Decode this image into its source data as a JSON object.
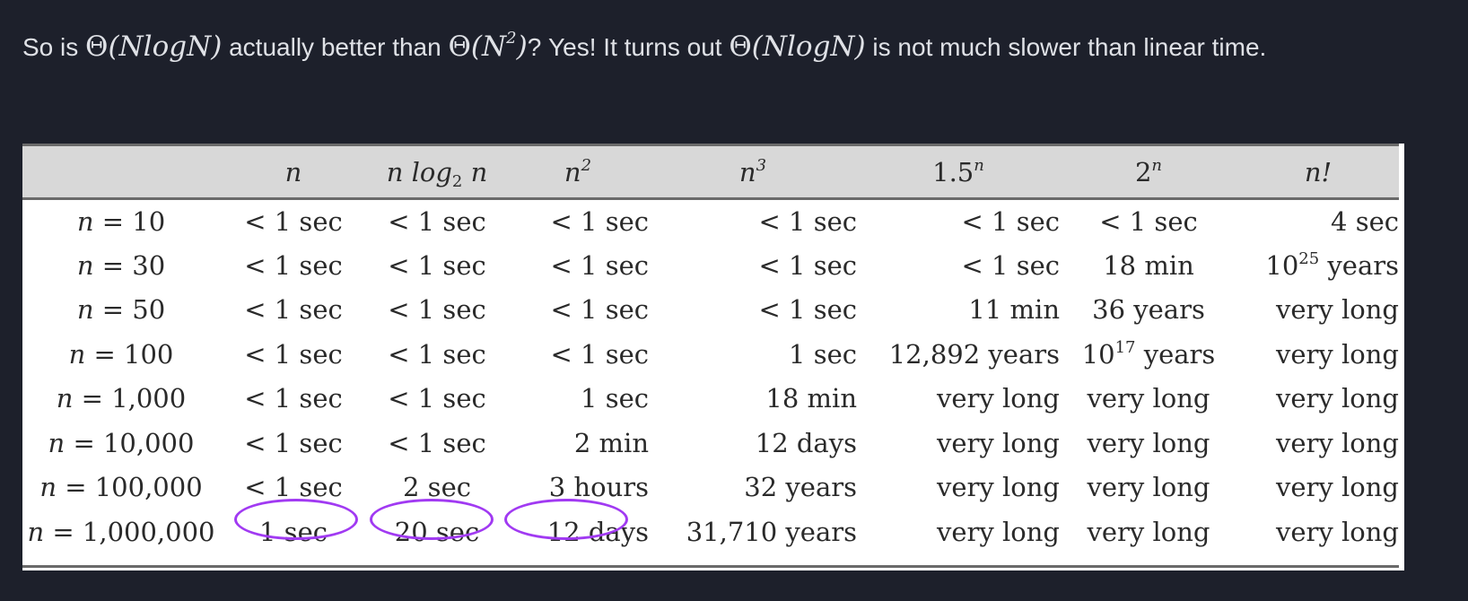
{
  "intro": {
    "part1": "So is ",
    "math1_theta": "Θ",
    "math1_body": "(NlogN)",
    "part2": " actually better than ",
    "math2_theta": "Θ",
    "math2_open": "(N",
    "math2_sup": "2",
    "math2_close": ")",
    "part3": "? Yes! It turns out ",
    "math3_theta": "Θ",
    "math3_body": "(NlogN)",
    "part4": " is not much slower than linear time."
  },
  "table": {
    "headers": [
      {
        "base": "",
        "sub": "",
        "sup": "",
        "tail": ""
      },
      {
        "base": "n",
        "sub": "",
        "sup": "",
        "tail": ""
      },
      {
        "base": "n log",
        "sub": "2",
        "sup": "",
        "tail": " n"
      },
      {
        "base": "n",
        "sub": "",
        "sup": "2",
        "tail": ""
      },
      {
        "base": "n",
        "sub": "",
        "sup": "3",
        "tail": ""
      },
      {
        "base": "1.5",
        "sub": "",
        "sup": "n",
        "tail": ""
      },
      {
        "base": "2",
        "sub": "",
        "sup": "n",
        "tail": ""
      },
      {
        "base": "n!",
        "sub": "",
        "sup": "",
        "tail": ""
      }
    ],
    "rows": [
      {
        "label": "n = 10",
        "cells": [
          "< 1 sec",
          "< 1 sec",
          "< 1 sec",
          "< 1 sec",
          "< 1 sec",
          "< 1 sec",
          "4 sec"
        ]
      },
      {
        "label": "n = 30",
        "cells": [
          "< 1 sec",
          "< 1 sec",
          "< 1 sec",
          "< 1 sec",
          "< 1 sec",
          "18 min",
          "10^25 years"
        ]
      },
      {
        "label": "n = 50",
        "cells": [
          "< 1 sec",
          "< 1 sec",
          "< 1 sec",
          "< 1 sec",
          "11 min",
          "36 years",
          "very long"
        ]
      },
      {
        "label": "n = 100",
        "cells": [
          "< 1 sec",
          "< 1 sec",
          "< 1 sec",
          "1 sec",
          "12,892 years",
          "10^17 years",
          "very long"
        ]
      },
      {
        "label": "n = 1,000",
        "cells": [
          "< 1 sec",
          "< 1 sec",
          "1 sec",
          "18 min",
          "very long",
          "very long",
          "very long"
        ]
      },
      {
        "label": "n = 10,000",
        "cells": [
          "< 1 sec",
          "< 1 sec",
          "2 min",
          "12 days",
          "very long",
          "very long",
          "very long"
        ]
      },
      {
        "label": "n = 100,000",
        "cells": [
          "< 1 sec",
          "2 sec",
          "3 hours",
          "32 years",
          "very long",
          "very long",
          "very long"
        ]
      },
      {
        "label": "n = 1,000,000",
        "cells": [
          "1 sec",
          "20 sec",
          "12 days",
          "31,710 years",
          "very long",
          "very long",
          "very long"
        ]
      }
    ],
    "highlight_color": "#a13af2"
  }
}
